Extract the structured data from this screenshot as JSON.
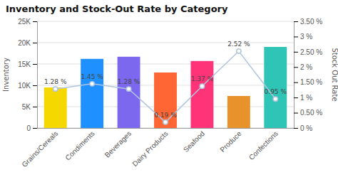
{
  "chart_data": {
    "type": "bar",
    "title": "Inventory and Stock-Out Rate by Category",
    "categories": [
      "Grains/Cereals",
      "Condiments",
      "Beverages",
      "Dairy Products",
      "Seafood",
      "Produce",
      "Confections"
    ],
    "series": [
      {
        "type": "bar",
        "values": [
          9500,
          16200,
          16700,
          13000,
          15700,
          7500,
          19000
        ],
        "colors": [
          "#f5d800",
          "#1e90ff",
          "#7b68ee",
          "#ff6633",
          "#ff3377",
          "#e8922c",
          "#2ec4b6"
        ]
      },
      {
        "type": "line",
        "axis": "y2",
        "color": "#b0c4de",
        "marker": "circle",
        "data_labels": true,
        "values": [
          1.28,
          1.45,
          1.28,
          0.19,
          1.37,
          2.52,
          0.95
        ],
        "value_labels": [
          "1.28 %",
          "1.45 %",
          "1.28 %",
          "0.19 %",
          "1.37 %",
          "2.52 %",
          "0.95 %"
        ]
      }
    ],
    "ylabel": "Inventory",
    "y2label": "Stock Out Rate",
    "ylim": [
      0,
      25000
    ],
    "yticks": [
      0,
      {
        "value": 5000,
        "label": "5K"
      },
      {
        "value": 10000,
        "label": "10K"
      },
      {
        "value": 15000,
        "label": "15K"
      },
      {
        "value": 20000,
        "label": "20K"
      },
      {
        "value": 25000,
        "label": "25K"
      }
    ],
    "y2lim": [
      0,
      3.5
    ],
    "y2ticks": [
      {
        "value": 0,
        "label": "0 %"
      },
      {
        "value": 0.5,
        "label": "0.50 %"
      },
      {
        "value": 1.0,
        "label": "1 %"
      },
      {
        "value": 1.5,
        "label": "1.50 %"
      },
      {
        "value": 2.0,
        "label": "2 %"
      },
      {
        "value": 2.5,
        "label": "2.50 %"
      },
      {
        "value": 3.0,
        "label": "3 %"
      },
      {
        "value": 3.5,
        "label": "3.50 %"
      }
    ],
    "grid": true
  }
}
